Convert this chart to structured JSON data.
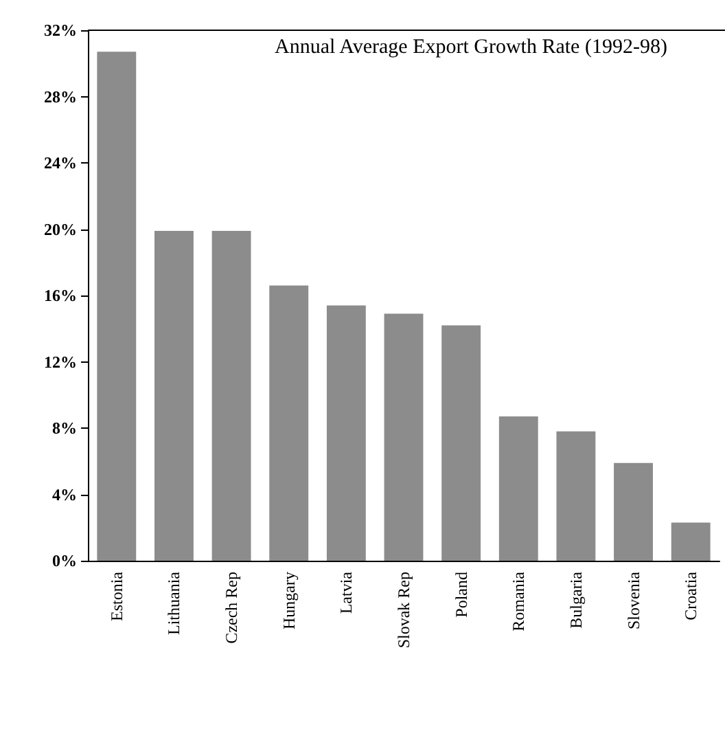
{
  "chart_data": {
    "type": "bar",
    "title": "Annual Average Export Growth Rate (1992-98)",
    "categories": [
      "Estonia",
      "Lithuania",
      "Czech Rep",
      "Hungary",
      "Latvia",
      "Slovak Rep",
      "Poland",
      "Romania",
      "Bulgaria",
      "Slovenia",
      "Croatia"
    ],
    "values": [
      30.7,
      19.9,
      19.9,
      16.6,
      15.4,
      14.9,
      14.2,
      8.7,
      7.8,
      5.9,
      2.3
    ],
    "color": "#8c8c8c",
    "ylim": [
      0,
      32
    ],
    "yticks": [
      {
        "value": 0,
        "label": "0%"
      },
      {
        "value": 4,
        "label": "4%"
      },
      {
        "value": 8,
        "label": "8%"
      },
      {
        "value": 12,
        "label": "12%"
      },
      {
        "value": 16,
        "label": "16%"
      },
      {
        "value": 20,
        "label": "20%"
      },
      {
        "value": 24,
        "label": "24%"
      },
      {
        "value": 28,
        "label": "28%"
      },
      {
        "value": 32,
        "label": "32%"
      }
    ],
    "grid": false
  }
}
